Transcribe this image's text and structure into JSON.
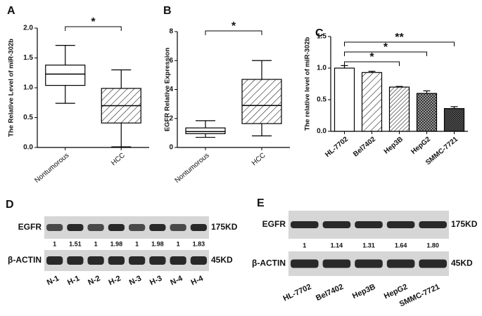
{
  "chart_data": [
    {
      "type": "box",
      "panel": "A",
      "ylabel": "The Relative Level of miR-302b",
      "categories": [
        "Nontumorous",
        "HCC"
      ],
      "boxes": [
        {
          "min": 0.74,
          "q1": 1.04,
          "median": 1.23,
          "q3": 1.38,
          "max": 1.71
        },
        {
          "min": 0.01,
          "q1": 0.41,
          "median": 0.7,
          "q3": 0.99,
          "max": 1.3
        }
      ],
      "fills": [
        "white",
        "hatch"
      ],
      "ylim": [
        0,
        2
      ],
      "yticks": [
        {
          "value": 0,
          "label": "0.0"
        },
        0.5,
        {
          "value": 1,
          "label": "1.0"
        },
        1.5,
        {
          "value": 2,
          "label": "2.0"
        }
      ],
      "annotations": [
        {
          "text": "*",
          "between": [
            "Nontumorous",
            "HCC"
          ]
        }
      ]
    },
    {
      "type": "box",
      "panel": "B",
      "ylabel": "EGFR Relative Expression",
      "categories": [
        "Nontumorous",
        "HCC"
      ],
      "boxes": [
        {
          "min": 0.7,
          "q1": 0.95,
          "median": 1.1,
          "q3": 1.35,
          "max": 1.85
        },
        {
          "min": 0.8,
          "q1": 1.65,
          "median": 2.9,
          "q3": 4.7,
          "max": 6.0
        }
      ],
      "fills": [
        "white",
        "hatch"
      ],
      "ylim": [
        0,
        8
      ],
      "yticks": [
        0,
        2,
        4,
        6,
        8
      ],
      "annotations": [
        {
          "text": "*",
          "between": [
            "Nontumorous",
            "HCC"
          ]
        }
      ]
    },
    {
      "type": "bar",
      "panel": "C",
      "ylabel": "The relative level of miR-302b",
      "categories": [
        "HL-7702",
        "Bel7402",
        "Hep3B",
        "HepG2",
        "SMMC-7721"
      ],
      "values": [
        1.0,
        0.93,
        0.7,
        0.6,
        0.36
      ],
      "errors": [
        0.04,
        0.02,
        0.01,
        0.04,
        0.03
      ],
      "fills": [
        "white",
        "hatch",
        "hatch-dense",
        "check",
        "check-dense"
      ],
      "ylim": [
        0,
        1.5
      ],
      "yticks": [
        {
          "value": 0,
          "label": "0.0"
        },
        0.5,
        {
          "value": 1,
          "label": "1.0"
        },
        1.5
      ],
      "annotations": [
        {
          "text": "*",
          "between": [
            "HL-7702",
            "Hep3B"
          ]
        },
        {
          "text": "*",
          "between": [
            "HL-7702",
            "HepG2"
          ]
        },
        {
          "text": "**",
          "between": [
            "HL-7702",
            "SMMC-7721"
          ]
        }
      ]
    }
  ],
  "blots": [
    {
      "panel": "D",
      "lanes": [
        "N-1",
        "H-1",
        "N-2",
        "H-2",
        "N-3",
        "H-3",
        "N-4",
        "H-4"
      ],
      "rows": [
        {
          "label": "EGFR",
          "size": "175KD"
        },
        {
          "label": "β-ACTIN",
          "size": "45KD"
        }
      ],
      "ratios": [
        "1",
        "1.51",
        "1",
        "1.98",
        "1",
        "1.98",
        "1",
        "1.83"
      ]
    },
    {
      "panel": "E",
      "lanes": [
        "HL-7702",
        "Bel7402",
        "Hep3B",
        "HepG2",
        "SMMC-7721"
      ],
      "rows": [
        {
          "label": "EGFR",
          "size": "175KD"
        },
        {
          "label": "β-ACTIN",
          "size": "45KD"
        }
      ],
      "ratios": [
        "1",
        "1.14",
        "1.31",
        "1.64",
        "1.80"
      ]
    }
  ]
}
